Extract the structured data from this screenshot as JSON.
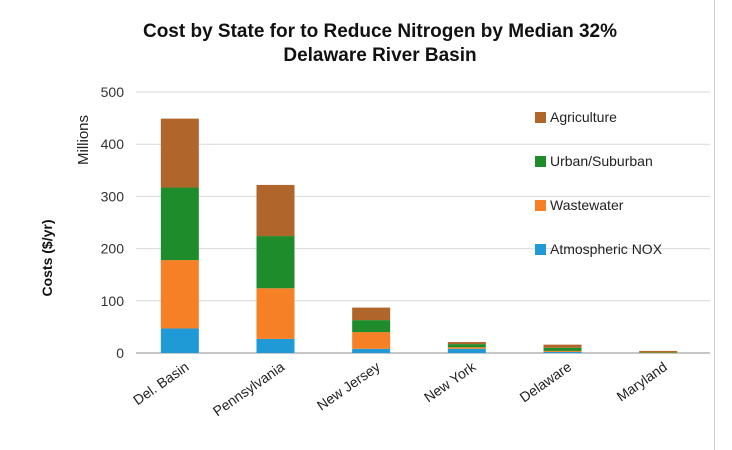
{
  "chart_data": {
    "type": "bar",
    "stacked": true,
    "title_lines": [
      "Cost by State for to Reduce Nitrogen by Median 32%",
      "Delaware River Basin"
    ],
    "ylabel": "Costs ($/yr)",
    "yunit_label": "Millions",
    "ylim": [
      0,
      500
    ],
    "yticks": [
      "0",
      "100",
      "200",
      "300",
      "400",
      "500"
    ],
    "grid": true,
    "legend_position": "right",
    "categories": [
      "Del. Basin",
      "Pennsylvania",
      "New Jersey",
      "New York",
      "Delaware",
      "Maryland"
    ],
    "series": [
      {
        "name": "Atmospheric NOX",
        "color": "#1f9ad6",
        "values": [
          47,
          27,
          8,
          8,
          2,
          0
        ]
      },
      {
        "name": "Wastewater",
        "color": "#f58025",
        "values": [
          131,
          97,
          32,
          3,
          2,
          1
        ]
      },
      {
        "name": "Urban/Suburban",
        "color": "#1e8c2a",
        "values": [
          139,
          100,
          23,
          6,
          6,
          1
        ]
      },
      {
        "name": "Agriculture",
        "color": "#b0662a",
        "values": [
          132,
          98,
          24,
          4,
          6,
          2
        ]
      }
    ],
    "legend_order": [
      "Agriculture",
      "Urban/Suburban",
      "Wastewater",
      "Atmospheric NOX"
    ]
  }
}
